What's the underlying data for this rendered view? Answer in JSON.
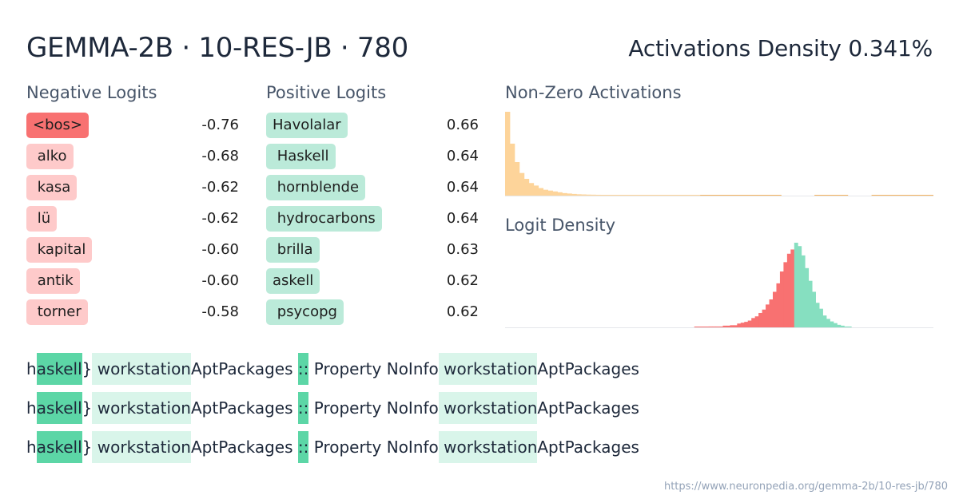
{
  "title": "GEMMA-2B · 10-RES-JB · 780",
  "density": "Activations Density 0.341%",
  "headers": {
    "negative": "Negative Logits",
    "positive": "Positive Logits",
    "nonzero": "Non-Zero Activations",
    "logit_density": "Logit Density"
  },
  "negative_logits": [
    {
      "token": "<bos>",
      "value": "-0.76"
    },
    {
      "token": " alko",
      "value": "-0.68"
    },
    {
      "token": " kasa",
      "value": "-0.62"
    },
    {
      "token": " lü",
      "value": "-0.62"
    },
    {
      "token": " kapital",
      "value": "-0.60"
    },
    {
      "token": " antik",
      "value": "-0.60"
    },
    {
      "token": " torner",
      "value": "-0.58"
    }
  ],
  "positive_logits": [
    {
      "token": "Havolalar",
      "value": "0.66"
    },
    {
      "token": " Haskell",
      "value": "0.64"
    },
    {
      "token": " hornblende",
      "value": "0.64"
    },
    {
      "token": " hydrocarbons",
      "value": "0.64"
    },
    {
      "token": " brilla",
      "value": "0.63"
    },
    {
      "token": "askell",
      "value": "0.62"
    },
    {
      "token": " psycopg",
      "value": "0.62"
    }
  ],
  "examples": [
    [
      {
        "text": "h",
        "level": 0
      },
      {
        "text": "askell",
        "level": 2
      },
      {
        "text": "}",
        "level": 0
      },
      {
        "text": " workstation",
        "level": 1
      },
      {
        "text": "AptPackages",
        "level": 0
      },
      {
        "text": " ",
        "level": 0
      },
      {
        "text": "::",
        "level": 2
      },
      {
        "text": " Property",
        "level": 0
      },
      {
        "text": " NoInfo",
        "level": 0
      },
      {
        "text": " workstation",
        "level": 1
      },
      {
        "text": "AptPackages",
        "level": 0
      }
    ],
    [
      {
        "text": "h",
        "level": 0
      },
      {
        "text": "askell",
        "level": 2
      },
      {
        "text": "}",
        "level": 0
      },
      {
        "text": " workstation",
        "level": 1
      },
      {
        "text": "AptPackages",
        "level": 0
      },
      {
        "text": " ",
        "level": 0
      },
      {
        "text": "::",
        "level": 2
      },
      {
        "text": " Property",
        "level": 0
      },
      {
        "text": " NoInfo",
        "level": 0
      },
      {
        "text": " workstation",
        "level": 1
      },
      {
        "text": "AptPackages",
        "level": 0
      }
    ],
    [
      {
        "text": "h",
        "level": 0
      },
      {
        "text": "askell",
        "level": 2
      },
      {
        "text": "}",
        "level": 0
      },
      {
        "text": " workstation",
        "level": 1
      },
      {
        "text": "AptPackages",
        "level": 0
      },
      {
        "text": " ",
        "level": 0
      },
      {
        "text": "::",
        "level": 2
      },
      {
        "text": " Property",
        "level": 0
      },
      {
        "text": " NoInfo",
        "level": 0
      },
      {
        "text": " workstation",
        "level": 1
      },
      {
        "text": "AptPackages",
        "level": 0
      }
    ]
  ],
  "url": "https://www.neuronpedia.org/gemma-2b/10-res-jb/780",
  "colors": {
    "negative_strong": "#f87171",
    "negative_weak": "#fecaca",
    "positive": "#bbead9",
    "activation_hist": "#fdd49a",
    "logit_negative": "#f87171",
    "logit_positive": "#86dfc0",
    "token_strong": "#5cd6a6",
    "token_weak": "#d9f5ea"
  },
  "chart_data": [
    {
      "type": "bar",
      "title": "Non-Zero Activations",
      "values": [
        100,
        62,
        40,
        27,
        20,
        15,
        12,
        9,
        7,
        6,
        5,
        4,
        3,
        2.5,
        2,
        1.6,
        1.4,
        1.2,
        1.1,
        1,
        0.9,
        0.8,
        0.8,
        0.7,
        0.7,
        0.6,
        0.6,
        0.5,
        0.5,
        0.5,
        0.4,
        0.4,
        0.4,
        0.4,
        0.3,
        0.3,
        0.3,
        0.3,
        0.3,
        0.3,
        0.3,
        0.3,
        0.2,
        0.2,
        0.2,
        0.2,
        0.2,
        0.2,
        0.2,
        0.2,
        0.2,
        0.2,
        0.2,
        0.2,
        0.2,
        0.2,
        0.2,
        0.2,
        0,
        0,
        0,
        0,
        0,
        0,
        0,
        0.2,
        0.2,
        0.2,
        0.2,
        0.2,
        0.2,
        0.2,
        0,
        0,
        0,
        0,
        0,
        0.2,
        0.2,
        0.2,
        0.2,
        0.2,
        0.2,
        0.2,
        0.2,
        0.2,
        0.2,
        0.2,
        0.2,
        0.2
      ]
    },
    {
      "type": "bar",
      "title": "Logit Density",
      "values": [
        0,
        0,
        0,
        0,
        0,
        0,
        0,
        0,
        0,
        0,
        0,
        0,
        0,
        0,
        0,
        0,
        0,
        0,
        0,
        0,
        0,
        0,
        0,
        0,
        0,
        0,
        0,
        0,
        0,
        0,
        0,
        0,
        0,
        0,
        0,
        0,
        0,
        0,
        0,
        0,
        0,
        0,
        0,
        0,
        0,
        0,
        0,
        0,
        0,
        0,
        0,
        0,
        0,
        0.5,
        0.5,
        0.5,
        0.5,
        1,
        1,
        1,
        1,
        2,
        2,
        2.5,
        2.5,
        4.5,
        5.5,
        6.5,
        8,
        11,
        13,
        17,
        21,
        27,
        33,
        42,
        52,
        66,
        77,
        87,
        92,
        100,
        96,
        85,
        70,
        55,
        42,
        29,
        22,
        14,
        10,
        7,
        5,
        3,
        2,
        1,
        1,
        0,
        0,
        0,
        0,
        0,
        0,
        0,
        0,
        0,
        0,
        0,
        0,
        0,
        0,
        0,
        0,
        0,
        0,
        0,
        0,
        0,
        0,
        0
      ],
      "negative_count": 81,
      "ylim": [
        0,
        100
      ]
    }
  ]
}
